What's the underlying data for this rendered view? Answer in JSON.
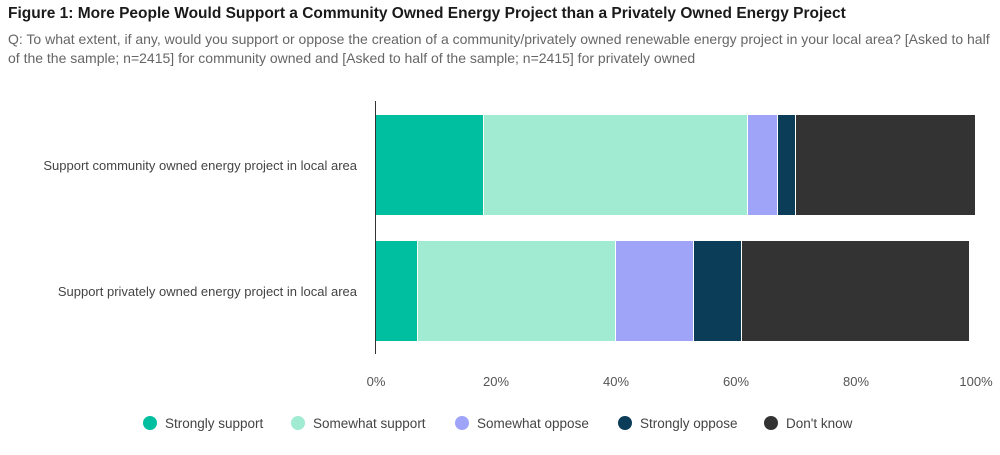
{
  "header": {
    "title": "Figure 1: More People Would Support a Community Owned Energy Project than a Privately Owned Energy Project",
    "subtitle": "Q: To what extent, if any, would you support or oppose the creation of a community/privately owned renewable energy project in your local area? [Asked to half of the the sample; n=2415] for community owned and [Asked to half of the sample; n=2415] for privately owned"
  },
  "chart_data": {
    "type": "bar",
    "orientation": "horizontal",
    "stacked": true,
    "categories": [
      "Support community owned energy project in local area",
      "Support privately owned energy project in local area"
    ],
    "series": [
      {
        "name": "Strongly support",
        "color": "#00bfa0",
        "values": [
          18,
          7
        ]
      },
      {
        "name": "Somewhat support",
        "color": "#a1ebd2",
        "values": [
          44,
          33
        ]
      },
      {
        "name": "Somewhat oppose",
        "color": "#9fa4f9",
        "values": [
          5,
          13
        ]
      },
      {
        "name": "Strongly oppose",
        "color": "#0b3d59",
        "values": [
          3,
          8
        ]
      },
      {
        "name": "Don't know",
        "color": "#333333",
        "values": [
          30,
          38
        ]
      }
    ],
    "x_ticks": [
      "0%",
      "20%",
      "40%",
      "60%",
      "80%",
      "100%"
    ],
    "xlim": [
      0,
      100
    ],
    "grid": false,
    "legend_position": "bottom"
  }
}
